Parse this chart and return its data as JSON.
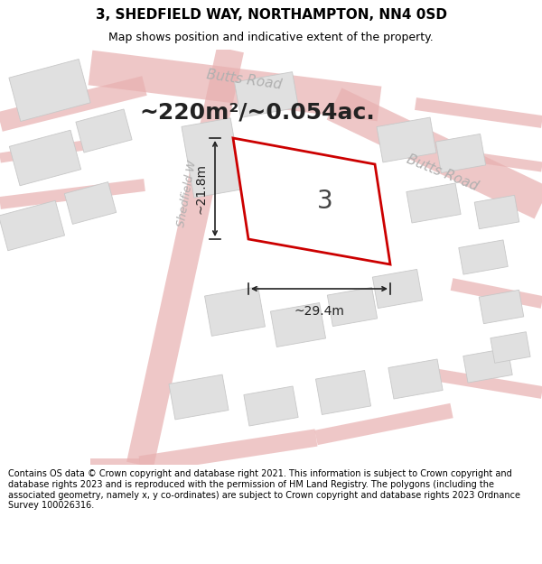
{
  "title": "3, SHEDFIELD WAY, NORTHAMPTON, NN4 0SD",
  "subtitle": "Map shows position and indicative extent of the property.",
  "footer": "Contains OS data © Crown copyright and database right 2021. This information is subject to Crown copyright and database rights 2023 and is reproduced with the permission of HM Land Registry. The polygons (including the associated geometry, namely x, y co-ordinates) are subject to Crown copyright and database rights 2023 Ordnance Survey 100026316.",
  "area_text": "~220m²/~0.054ac.",
  "plot_number": "3",
  "dim_width": "~29.4m",
  "dim_height": "~21.8m",
  "road_label_upper": "Butts Road",
  "road_label_right": "Butts Road",
  "road_label_left": "Shedfield W",
  "plot_edge_color": "#cc0000",
  "plot_fill_color": "#ffffff",
  "map_bg": "#f8f8f8",
  "building_fill": "#e0e0e0",
  "building_edge": "#c8c8c8",
  "road_line_color": "#e8b0b0",
  "road_label_color": "#b0b0b0",
  "dim_line_color": "#222222",
  "text_color": "#222222",
  "title_fontsize": 11,
  "subtitle_fontsize": 9,
  "area_fontsize": 18,
  "plot_num_fontsize": 20,
  "dim_fontsize": 10,
  "road_label_fontsize": 11,
  "footer_fontsize": 7
}
